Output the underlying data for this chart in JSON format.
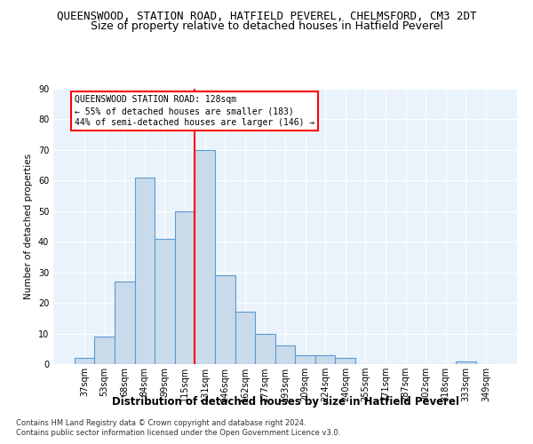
{
  "title": "QUEENSWOOD, STATION ROAD, HATFIELD PEVEREL, CHELMSFORD, CM3 2DT",
  "subtitle": "Size of property relative to detached houses in Hatfield Peverel",
  "xlabel": "Distribution of detached houses by size in Hatfield Peverel",
  "ylabel": "Number of detached properties",
  "categories": [
    "37sqm",
    "53sqm",
    "68sqm",
    "84sqm",
    "99sqm",
    "115sqm",
    "131sqm",
    "146sqm",
    "162sqm",
    "177sqm",
    "193sqm",
    "209sqm",
    "224sqm",
    "240sqm",
    "255sqm",
    "271sqm",
    "287sqm",
    "302sqm",
    "318sqm",
    "333sqm",
    "349sqm"
  ],
  "values": [
    2,
    9,
    27,
    61,
    41,
    50,
    70,
    29,
    17,
    10,
    6,
    3,
    3,
    2,
    0,
    0,
    0,
    0,
    0,
    1,
    0
  ],
  "bar_color": "#c9daea",
  "bar_edge_color": "#5b9bd5",
  "vline_x_index": 6,
  "vline_color": "red",
  "annotation_title": "QUEENSWOOD STATION ROAD: 128sqm",
  "annotation_line1": "← 55% of detached houses are smaller (183)",
  "annotation_line2": "44% of semi-detached houses are larger (146) →",
  "annotation_box_color": "white",
  "annotation_box_edge_color": "red",
  "ylim": [
    0,
    90
  ],
  "yticks": [
    0,
    10,
    20,
    30,
    40,
    50,
    60,
    70,
    80,
    90
  ],
  "footer1": "Contains HM Land Registry data © Crown copyright and database right 2024.",
  "footer2": "Contains public sector information licensed under the Open Government Licence v3.0.",
  "background_color": "#eaf3fb",
  "fig_background": "#ffffff",
  "title_fontsize": 9,
  "subtitle_fontsize": 9,
  "xlabel_fontsize": 8.5,
  "ylabel_fontsize": 7.5,
  "tick_fontsize": 7,
  "annotation_fontsize": 7,
  "footer_fontsize": 6
}
